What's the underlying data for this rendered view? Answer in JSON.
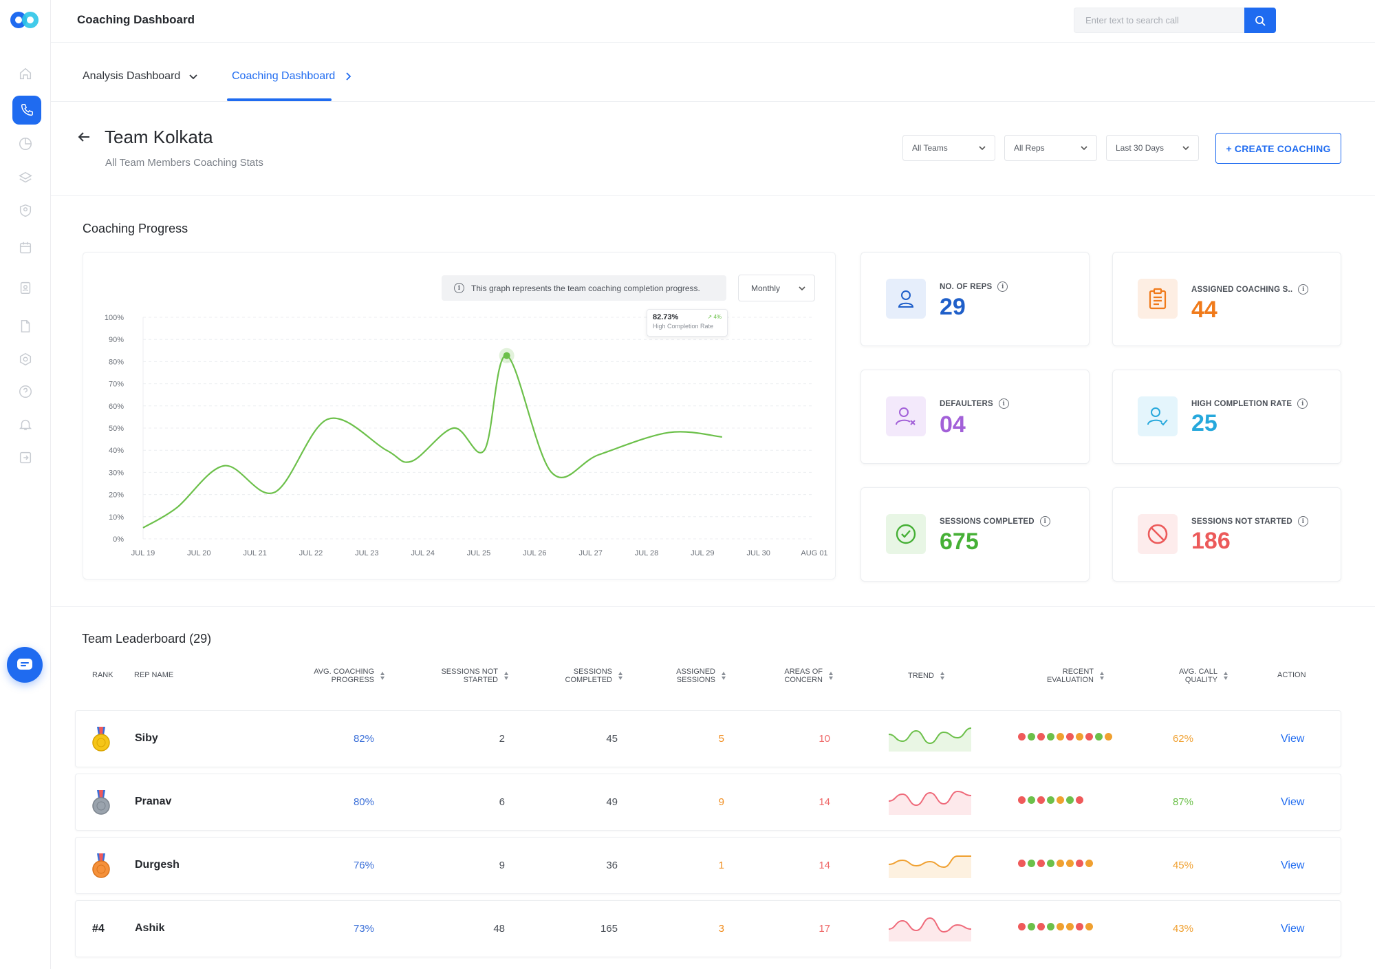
{
  "topbar": {
    "title": "Coaching Dashboard",
    "search_placeholder": "Enter text to search call"
  },
  "tabs": [
    {
      "label": "Analysis Dashboard"
    },
    {
      "label": "Coaching Dashboard"
    }
  ],
  "header": {
    "title": "Team Kolkata",
    "subtitle": "All Team Members Coaching Stats",
    "filters": [
      "All Teams",
      "All Reps",
      "Last 30 Days"
    ],
    "create_label": "+ CREATE COACHING"
  },
  "progress": {
    "section_title": "Coaching Progress",
    "info_text": "This graph represents the team coaching completion progress.",
    "period": "Monthly",
    "tooltip": {
      "value": "82.73%",
      "change": "4%",
      "label": "High Completion Rate"
    }
  },
  "chart_data": {
    "type": "line",
    "x": [
      "JUL 19",
      "JUL 20",
      "JUL 21",
      "JUL 22",
      "JUL 23",
      "JUL 24",
      "JUL 25",
      "JUL 26",
      "JUL 27",
      "JUL 28",
      "JUL 29",
      "JUL 30",
      "AUG 01"
    ],
    "y_ticks": [
      "0%",
      "10%",
      "20%",
      "30%",
      "40%",
      "50%",
      "60%",
      "70%",
      "80%",
      "90%",
      "100%"
    ],
    "ylim": [
      0,
      100
    ],
    "series": [
      {
        "color": "#6cc04a",
        "points": [
          [
            0,
            5
          ],
          [
            0.6,
            14
          ],
          [
            1.45,
            33
          ],
          [
            2.35,
            21
          ],
          [
            3.3,
            54
          ],
          [
            4.35,
            40
          ],
          [
            4.8,
            35
          ],
          [
            5.55,
            50
          ],
          [
            6.1,
            40
          ],
          [
            6.5,
            82.7
          ],
          [
            7.3,
            30
          ],
          [
            8.15,
            38
          ],
          [
            9.4,
            48
          ],
          [
            10.35,
            46
          ]
        ]
      }
    ]
  },
  "stats": [
    {
      "label": "NO. OF REPS",
      "value": "29",
      "color": "#1f5fc9",
      "icon": "user-icon"
    },
    {
      "label": "ASSIGNED COACHING S..",
      "value": "44",
      "color": "#f07a1a",
      "icon": "clipboard-icon"
    },
    {
      "label": "DEFAULTERS",
      "value": "04",
      "color": "#a260d8",
      "icon": "user-x-icon"
    },
    {
      "label": "HIGH COMPLETION RATE",
      "value": "25",
      "color": "#26a8dc",
      "icon": "user-check-icon"
    },
    {
      "label": "SESSIONS COMPLETED",
      "value": "675",
      "color": "#46b036",
      "icon": "check-circle-icon"
    },
    {
      "label": "SESSIONS NOT STARTED",
      "value": "186",
      "color": "#ec5a5a",
      "icon": "ban-icon"
    }
  ],
  "leaderboard": {
    "title": "Team Leaderboard (29)",
    "columns": [
      "RANK",
      "REP NAME",
      "AVG. COACHING PROGRESS",
      "SESSIONS NOT STARTED",
      "SESSIONS COMPLETED",
      "ASSIGNED SESSIONS",
      "AREAS OF CONCERN",
      "TREND",
      "RECENT EVALUATION",
      "AVG. CALL QUALITY",
      "ACTION"
    ],
    "rows": [
      {
        "rank": "gold-medal",
        "name": "Siby",
        "progress": "82%",
        "not_started": "2",
        "completed": "45",
        "assigned": "5",
        "concern": "10",
        "trend_color": "#6cc04a",
        "trend": [
          25,
          15,
          30,
          12,
          28,
          20,
          34
        ],
        "quality": "62%",
        "quality_color": "#f0a030",
        "evaluation": [
          "#ef5a5a",
          "#6cc04a",
          "#ef5a5a",
          "#6cc04a",
          "#f0a030",
          "#ef5a5a",
          "#f0a030",
          "#ef5a5a",
          "#6cc04a",
          "#f0a030"
        ],
        "action": "View"
      },
      {
        "rank": "silver-medal",
        "name": "Pranav",
        "progress": "80%",
        "not_started": "6",
        "completed": "49",
        "assigned": "9",
        "concern": "14",
        "trend_color": "#ef6a7a",
        "trend": [
          20,
          30,
          14,
          32,
          16,
          34,
          28
        ],
        "quality": "87%",
        "quality_color": "#6cc04a",
        "evaluation": [
          "#ef5a5a",
          "#6cc04a",
          "#ef5a5a",
          "#6cc04a",
          "#f0a030",
          "#6cc04a",
          "#ef5a5a"
        ],
        "action": "View"
      },
      {
        "rank": "bronze-medal",
        "name": "Durgesh",
        "progress": "76%",
        "not_started": "9",
        "completed": "36",
        "assigned": "1",
        "concern": "14",
        "trend_color": "#f0a030",
        "trend": [
          20,
          26,
          18,
          24,
          16,
          32,
          32
        ],
        "quality": "45%",
        "quality_color": "#f0a030",
        "evaluation": [
          "#ef5a5a",
          "#6cc04a",
          "#ef5a5a",
          "#6cc04a",
          "#f0a030",
          "#f0a030",
          "#ef5a5a",
          "#f0a030"
        ],
        "action": "View"
      },
      {
        "rank": "#4",
        "name": "Ashik",
        "progress": "73%",
        "not_started": "48",
        "completed": "165",
        "assigned": "3",
        "concern": "17",
        "trend_color": "#ef6a7a",
        "trend": [
          18,
          30,
          16,
          34,
          14,
          24,
          18
        ],
        "quality": "43%",
        "quality_color": "#f0a030",
        "evaluation": [
          "#ef5a5a",
          "#6cc04a",
          "#ef5a5a",
          "#6cc04a",
          "#f0a030",
          "#f0a030",
          "#ef5a5a",
          "#f0a030"
        ],
        "action": "View"
      }
    ]
  }
}
